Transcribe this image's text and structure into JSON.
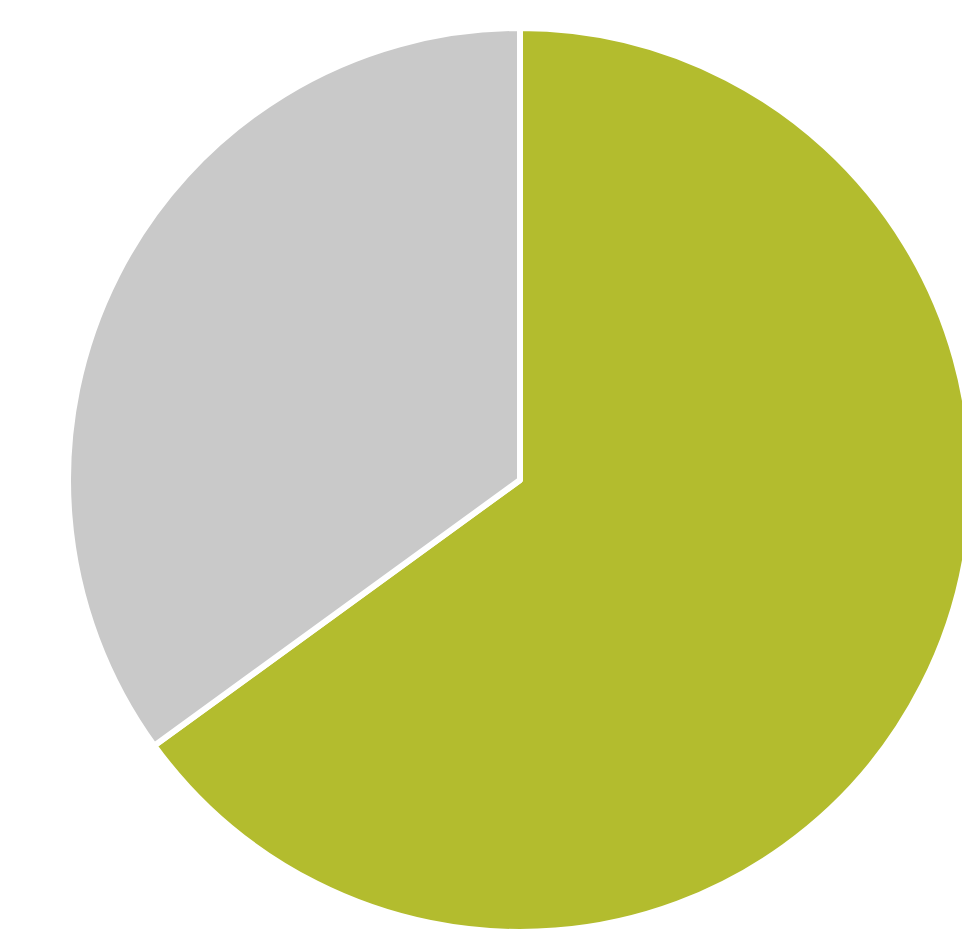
{
  "chart_data": {
    "type": "pie",
    "categories": [
      null,
      null
    ],
    "values": [
      65,
      35
    ],
    "colors": [
      "#b3bc2e",
      "#c9c9c9"
    ]
  }
}
